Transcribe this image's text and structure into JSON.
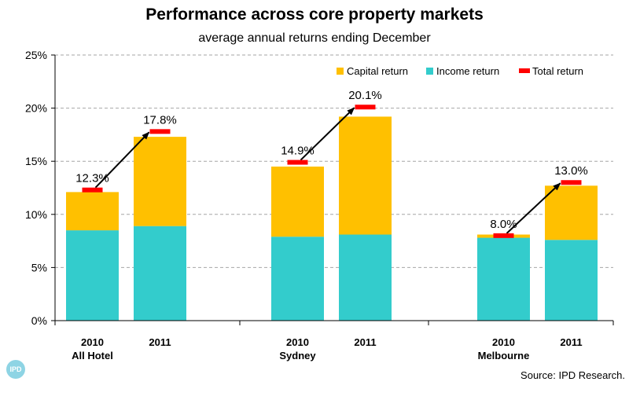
{
  "colors": {
    "capital": "#FFC000",
    "income": "#33CCCC",
    "total": "#FF0000",
    "grid": "#A6A6A6",
    "logo": "#8ED4E4"
  },
  "logo": {
    "text": "IPD"
  },
  "source": "Source: IPD Research.",
  "chart_data": {
    "type": "bar",
    "stacked": true,
    "title": "Performance across core property markets",
    "subtitle": "average annual returns ending December",
    "ylim": [
      0,
      25
    ],
    "yticks": [
      "0%",
      "5%",
      "10%",
      "15%",
      "20%",
      "25%"
    ],
    "grid": true,
    "legend_position": "top-right",
    "legend": [
      "Capital return",
      "Income return",
      "Total return"
    ],
    "groups": [
      {
        "name": "All Hotel",
        "bars": [
          {
            "year": "2010",
            "income": 8.5,
            "capital": 3.6,
            "total": 12.3,
            "total_label": "12.3%"
          },
          {
            "year": "2011",
            "income": 8.9,
            "capital": 8.4,
            "total": 17.8,
            "total_label": "17.8%"
          }
        ]
      },
      {
        "name": "Sydney",
        "bars": [
          {
            "year": "2010",
            "income": 7.9,
            "capital": 6.6,
            "total": 14.9,
            "total_label": "14.9%"
          },
          {
            "year": "2011",
            "income": 8.1,
            "capital": 11.1,
            "total": 20.1,
            "total_label": "20.1%"
          }
        ]
      },
      {
        "name": "Melbourne",
        "bars": [
          {
            "year": "2010",
            "income": 7.8,
            "capital": 0.3,
            "total": 8.0,
            "total_label": "8.0%"
          },
          {
            "year": "2011",
            "income": 7.6,
            "capital": 5.1,
            "total": 13.0,
            "total_label": "13.0%"
          }
        ]
      }
    ]
  }
}
